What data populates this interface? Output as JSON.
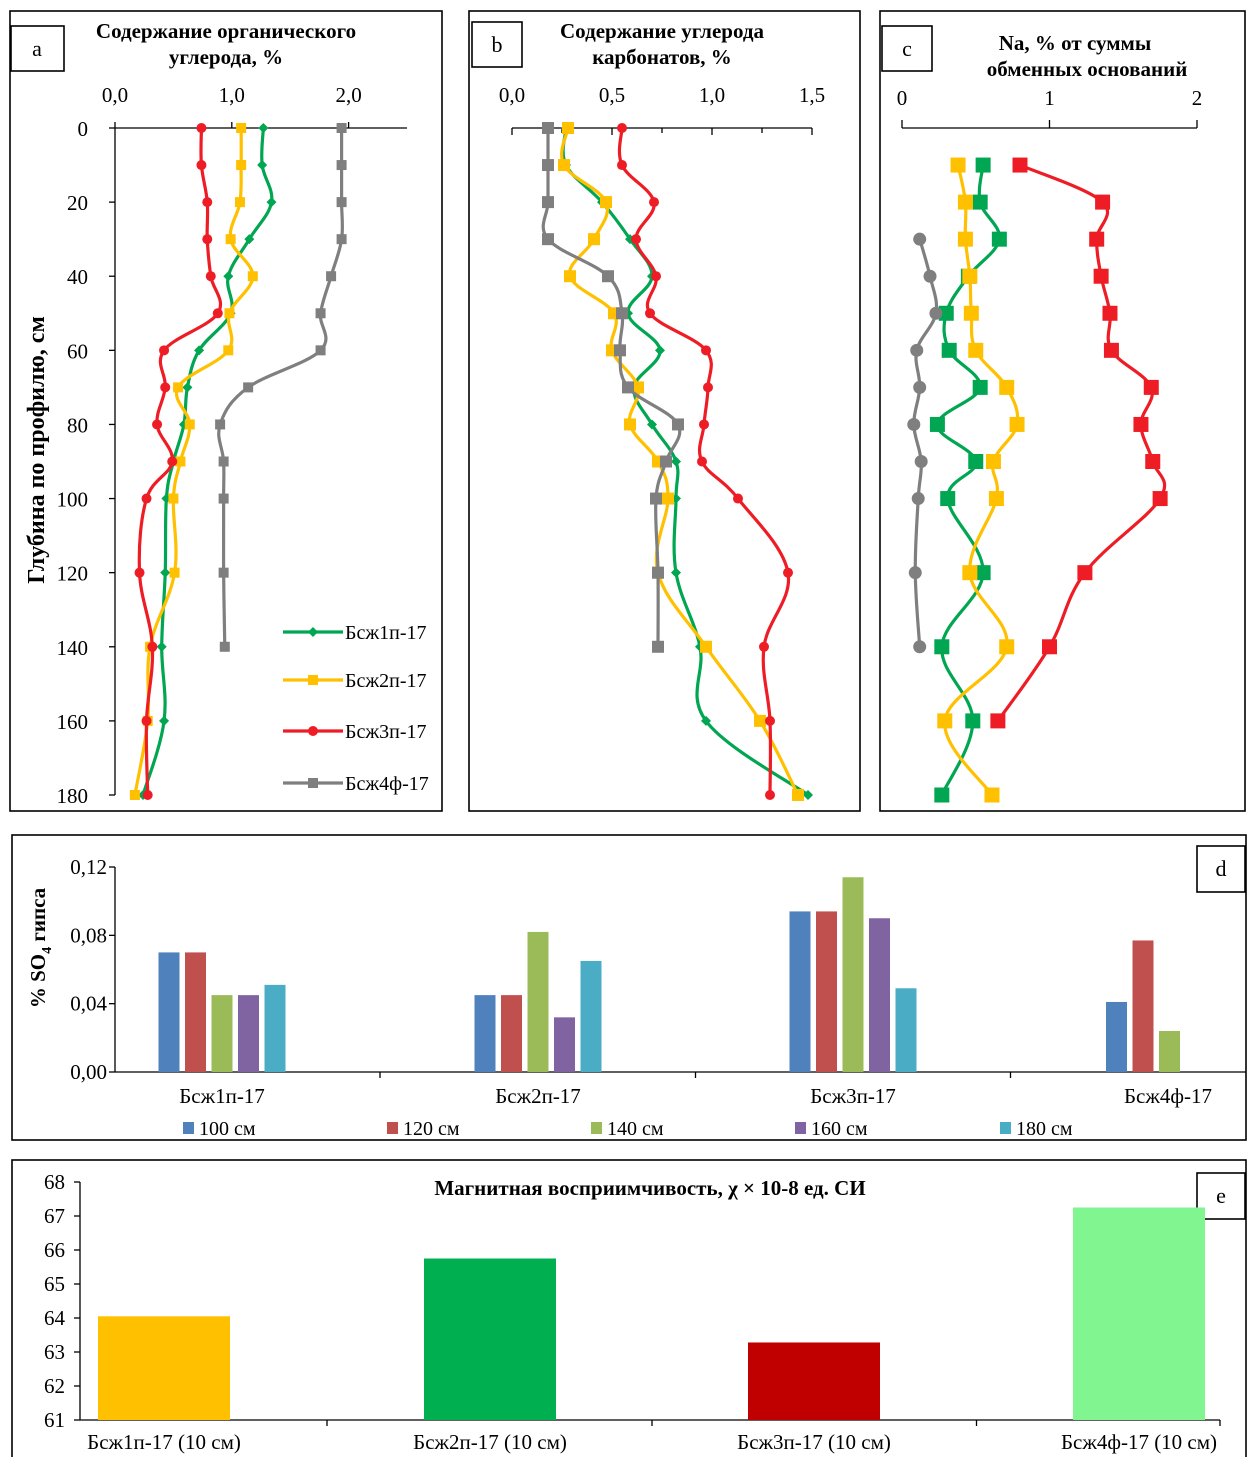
{
  "series_colors": {
    "Бсж1п-17": "#00a651",
    "Бсж2п-17": "#ffc000",
    "Бсж3п-17": "#ee1c25",
    "Бсж4ф-17": "#7f7f7f"
  },
  "chart_data": [
    {
      "panel": "a",
      "type": "line",
      "title": "Содержание органического углерода, %",
      "title_lines": [
        "Содержание органического",
        "углерода, %"
      ],
      "xlabel": "",
      "ylabel": "Глубина по профилю, см",
      "xlim": [
        0,
        2.5
      ],
      "xticks": [
        "0,0",
        "1,0",
        "2,0"
      ],
      "ylim": [
        0,
        180
      ],
      "yticks": [
        "0",
        "20",
        "40",
        "60",
        "80",
        "100",
        "120",
        "140",
        "160",
        "180"
      ],
      "legend": "bottom-right",
      "series": [
        {
          "name": "Бсж1п-17",
          "marker": "diamond",
          "x": [
            1.27,
            1.26,
            1.34,
            1.15,
            0.97,
            0.99,
            0.72,
            0.62,
            0.59,
            0.5,
            0.44,
            0.43,
            0.4,
            0.42,
            0.24
          ],
          "y": [
            0,
            10,
            20,
            30,
            40,
            50,
            60,
            70,
            80,
            90,
            100,
            120,
            140,
            160,
            180
          ]
        },
        {
          "name": "Бсж2п-17",
          "marker": "square",
          "x": [
            1.08,
            1.08,
            1.07,
            0.99,
            1.18,
            0.98,
            0.97,
            0.54,
            0.64,
            0.56,
            0.5,
            0.51,
            0.3,
            0.28,
            0.17
          ],
          "y": [
            0,
            10,
            20,
            30,
            40,
            50,
            60,
            70,
            80,
            90,
            100,
            120,
            140,
            160,
            180
          ]
        },
        {
          "name": "Бсж3п-17",
          "marker": "circle",
          "x": [
            0.74,
            0.74,
            0.79,
            0.79,
            0.82,
            0.88,
            0.42,
            0.43,
            0.36,
            0.49,
            0.27,
            0.21,
            0.32,
            0.27,
            0.28
          ],
          "y": [
            0,
            10,
            20,
            30,
            40,
            50,
            60,
            70,
            80,
            90,
            100,
            120,
            140,
            160,
            180
          ]
        },
        {
          "name": "Бсж4ф-17",
          "marker": "square",
          "x": [
            1.94,
            1.94,
            1.94,
            1.94,
            1.85,
            1.76,
            1.76,
            1.14,
            0.9,
            0.93,
            0.93,
            0.93,
            0.94
          ],
          "y": [
            0,
            10,
            20,
            30,
            40,
            50,
            60,
            70,
            80,
            90,
            100,
            120,
            140
          ]
        }
      ]
    },
    {
      "panel": "b",
      "type": "line",
      "title": "Содержание углерода карбонатов, %",
      "title_lines": [
        "Содержание углерода",
        "карбонатов, %"
      ],
      "xlabel": "",
      "ylabel": "",
      "xlim": [
        0,
        1.5
      ],
      "xticks": [
        "0,0",
        "0,5",
        "1,0",
        "1,5"
      ],
      "ylim": [
        0,
        180
      ],
      "series": [
        {
          "name": "Бсж1п-17",
          "marker": "diamond",
          "x": [
            0.27,
            0.27,
            0.45,
            0.59,
            0.7,
            0.58,
            0.74,
            0.61,
            0.7,
            0.82,
            0.82,
            0.82,
            0.94,
            0.97,
            1.48
          ],
          "y": [
            0,
            10,
            20,
            30,
            40,
            50,
            60,
            70,
            80,
            90,
            100,
            120,
            140,
            160,
            180
          ]
        },
        {
          "name": "Бсж2п-17",
          "marker": "square",
          "x": [
            0.28,
            0.26,
            0.47,
            0.41,
            0.29,
            0.51,
            0.5,
            0.63,
            0.59,
            0.73,
            0.78,
            0.73,
            0.97,
            1.24,
            1.43
          ],
          "y": [
            0,
            10,
            20,
            30,
            40,
            50,
            60,
            70,
            80,
            90,
            100,
            120,
            140,
            160,
            180
          ]
        },
        {
          "name": "Бсж3п-17",
          "marker": "circle",
          "x": [
            0.55,
            0.55,
            0.71,
            0.62,
            0.72,
            0.69,
            0.97,
            0.98,
            0.96,
            0.95,
            1.13,
            1.38,
            1.26,
            1.29,
            1.29
          ],
          "y": [
            0,
            10,
            20,
            30,
            40,
            50,
            60,
            70,
            80,
            90,
            100,
            120,
            140,
            160,
            180
          ]
        },
        {
          "name": "Бсж4ф-17",
          "marker": "square",
          "x": [
            0.18,
            0.18,
            0.18,
            0.18,
            0.48,
            0.55,
            0.54,
            0.58,
            0.83,
            0.77,
            0.72,
            0.73,
            0.73
          ],
          "y": [
            0,
            10,
            20,
            30,
            40,
            50,
            60,
            70,
            80,
            90,
            100,
            120,
            140
          ]
        }
      ]
    },
    {
      "panel": "c",
      "type": "line",
      "title": "Na, % от суммы обменных оснований",
      "title_lines": [
        "Na, % от суммы",
        "обменных оснований"
      ],
      "xlabel": "",
      "ylabel": "",
      "xlim": [
        0,
        2
      ],
      "xticks": [
        "0",
        "1",
        "2"
      ],
      "ylim": [
        0,
        180
      ],
      "series": [
        {
          "name": "Бсж1п-17",
          "marker": "square",
          "x": [
            0.55,
            0.53,
            0.66,
            0.45,
            0.3,
            0.32,
            0.53,
            0.24,
            0.5,
            0.31,
            0.55,
            0.27,
            0.48,
            0.27
          ],
          "y": [
            10,
            20,
            30,
            40,
            50,
            60,
            70,
            80,
            90,
            100,
            120,
            140,
            160,
            180
          ]
        },
        {
          "name": "Бсж2п-17",
          "marker": "square",
          "x": [
            0.38,
            0.43,
            0.43,
            0.46,
            0.47,
            0.5,
            0.71,
            0.78,
            0.62,
            0.64,
            0.46,
            0.71,
            0.29,
            0.61
          ],
          "y": [
            10,
            20,
            30,
            40,
            50,
            60,
            70,
            80,
            90,
            100,
            120,
            140,
            160,
            180
          ]
        },
        {
          "name": "Бсж3п-17",
          "marker": "square",
          "x": [
            0.8,
            1.36,
            1.32,
            1.35,
            1.41,
            1.42,
            1.69,
            1.62,
            1.7,
            1.75,
            1.24,
            1.0,
            0.65
          ],
          "y": [
            10,
            20,
            30,
            40,
            50,
            60,
            70,
            80,
            90,
            100,
            120,
            140,
            160
          ]
        },
        {
          "name": "Бсж4ф-17",
          "marker": "circle",
          "x": [
            0.12,
            0.19,
            0.23,
            0.1,
            0.12,
            0.08,
            0.13,
            0.11,
            0.09,
            0.12
          ],
          "y": [
            30,
            40,
            50,
            60,
            70,
            80,
            90,
            100,
            120,
            140
          ]
        }
      ]
    },
    {
      "panel": "d",
      "type": "bar",
      "title": "",
      "xlabel": "",
      "ylabel": "% SO4 гипса",
      "ylabel_parts": [
        "% SO",
        "4",
        " гипса"
      ],
      "ylim": [
        0,
        0.12
      ],
      "yticks": [
        "0,00",
        "0,04",
        "0,08",
        "0,12"
      ],
      "categories": [
        "Бсж1п-17",
        "Бсж2п-17",
        "Бсж3п-17",
        "Бсж4ф-17"
      ],
      "legend": "bottom",
      "series": [
        {
          "name": "100 см",
          "color": "#4f81bd",
          "values": [
            0.07,
            0.045,
            0.094,
            0.041
          ]
        },
        {
          "name": "120 см",
          "color": "#c0504d",
          "values": [
            0.07,
            0.045,
            0.094,
            0.077
          ]
        },
        {
          "name": "140 см",
          "color": "#9bbb59",
          "values": [
            0.045,
            0.082,
            0.114,
            0.024
          ]
        },
        {
          "name": "160 см",
          "color": "#8064a2",
          "values": [
            0.045,
            0.032,
            0.09,
            null
          ]
        },
        {
          "name": "180 см",
          "color": "#4bacc6",
          "values": [
            0.051,
            0.065,
            0.049,
            null
          ]
        }
      ]
    },
    {
      "panel": "e",
      "type": "bar",
      "title": "Магнитная восприимчивость, χ × 10-8 ед. СИ",
      "xlabel": "",
      "ylabel": "",
      "ylim": [
        61,
        68
      ],
      "yticks": [
        "61",
        "62",
        "63",
        "64",
        "65",
        "66",
        "67",
        "68"
      ],
      "categories": [
        "Бсж1п-17 (10 см)",
        "Бсж2п-17 (10 см)",
        "Бсж3п-17 (10 см)",
        "Бсж4ф-17 (10 см)"
      ],
      "values": [
        64.05,
        65.75,
        63.28,
        67.25
      ],
      "colors": [
        "#ffc000",
        "#00b050",
        "#c00000",
        "#80f590"
      ]
    }
  ]
}
